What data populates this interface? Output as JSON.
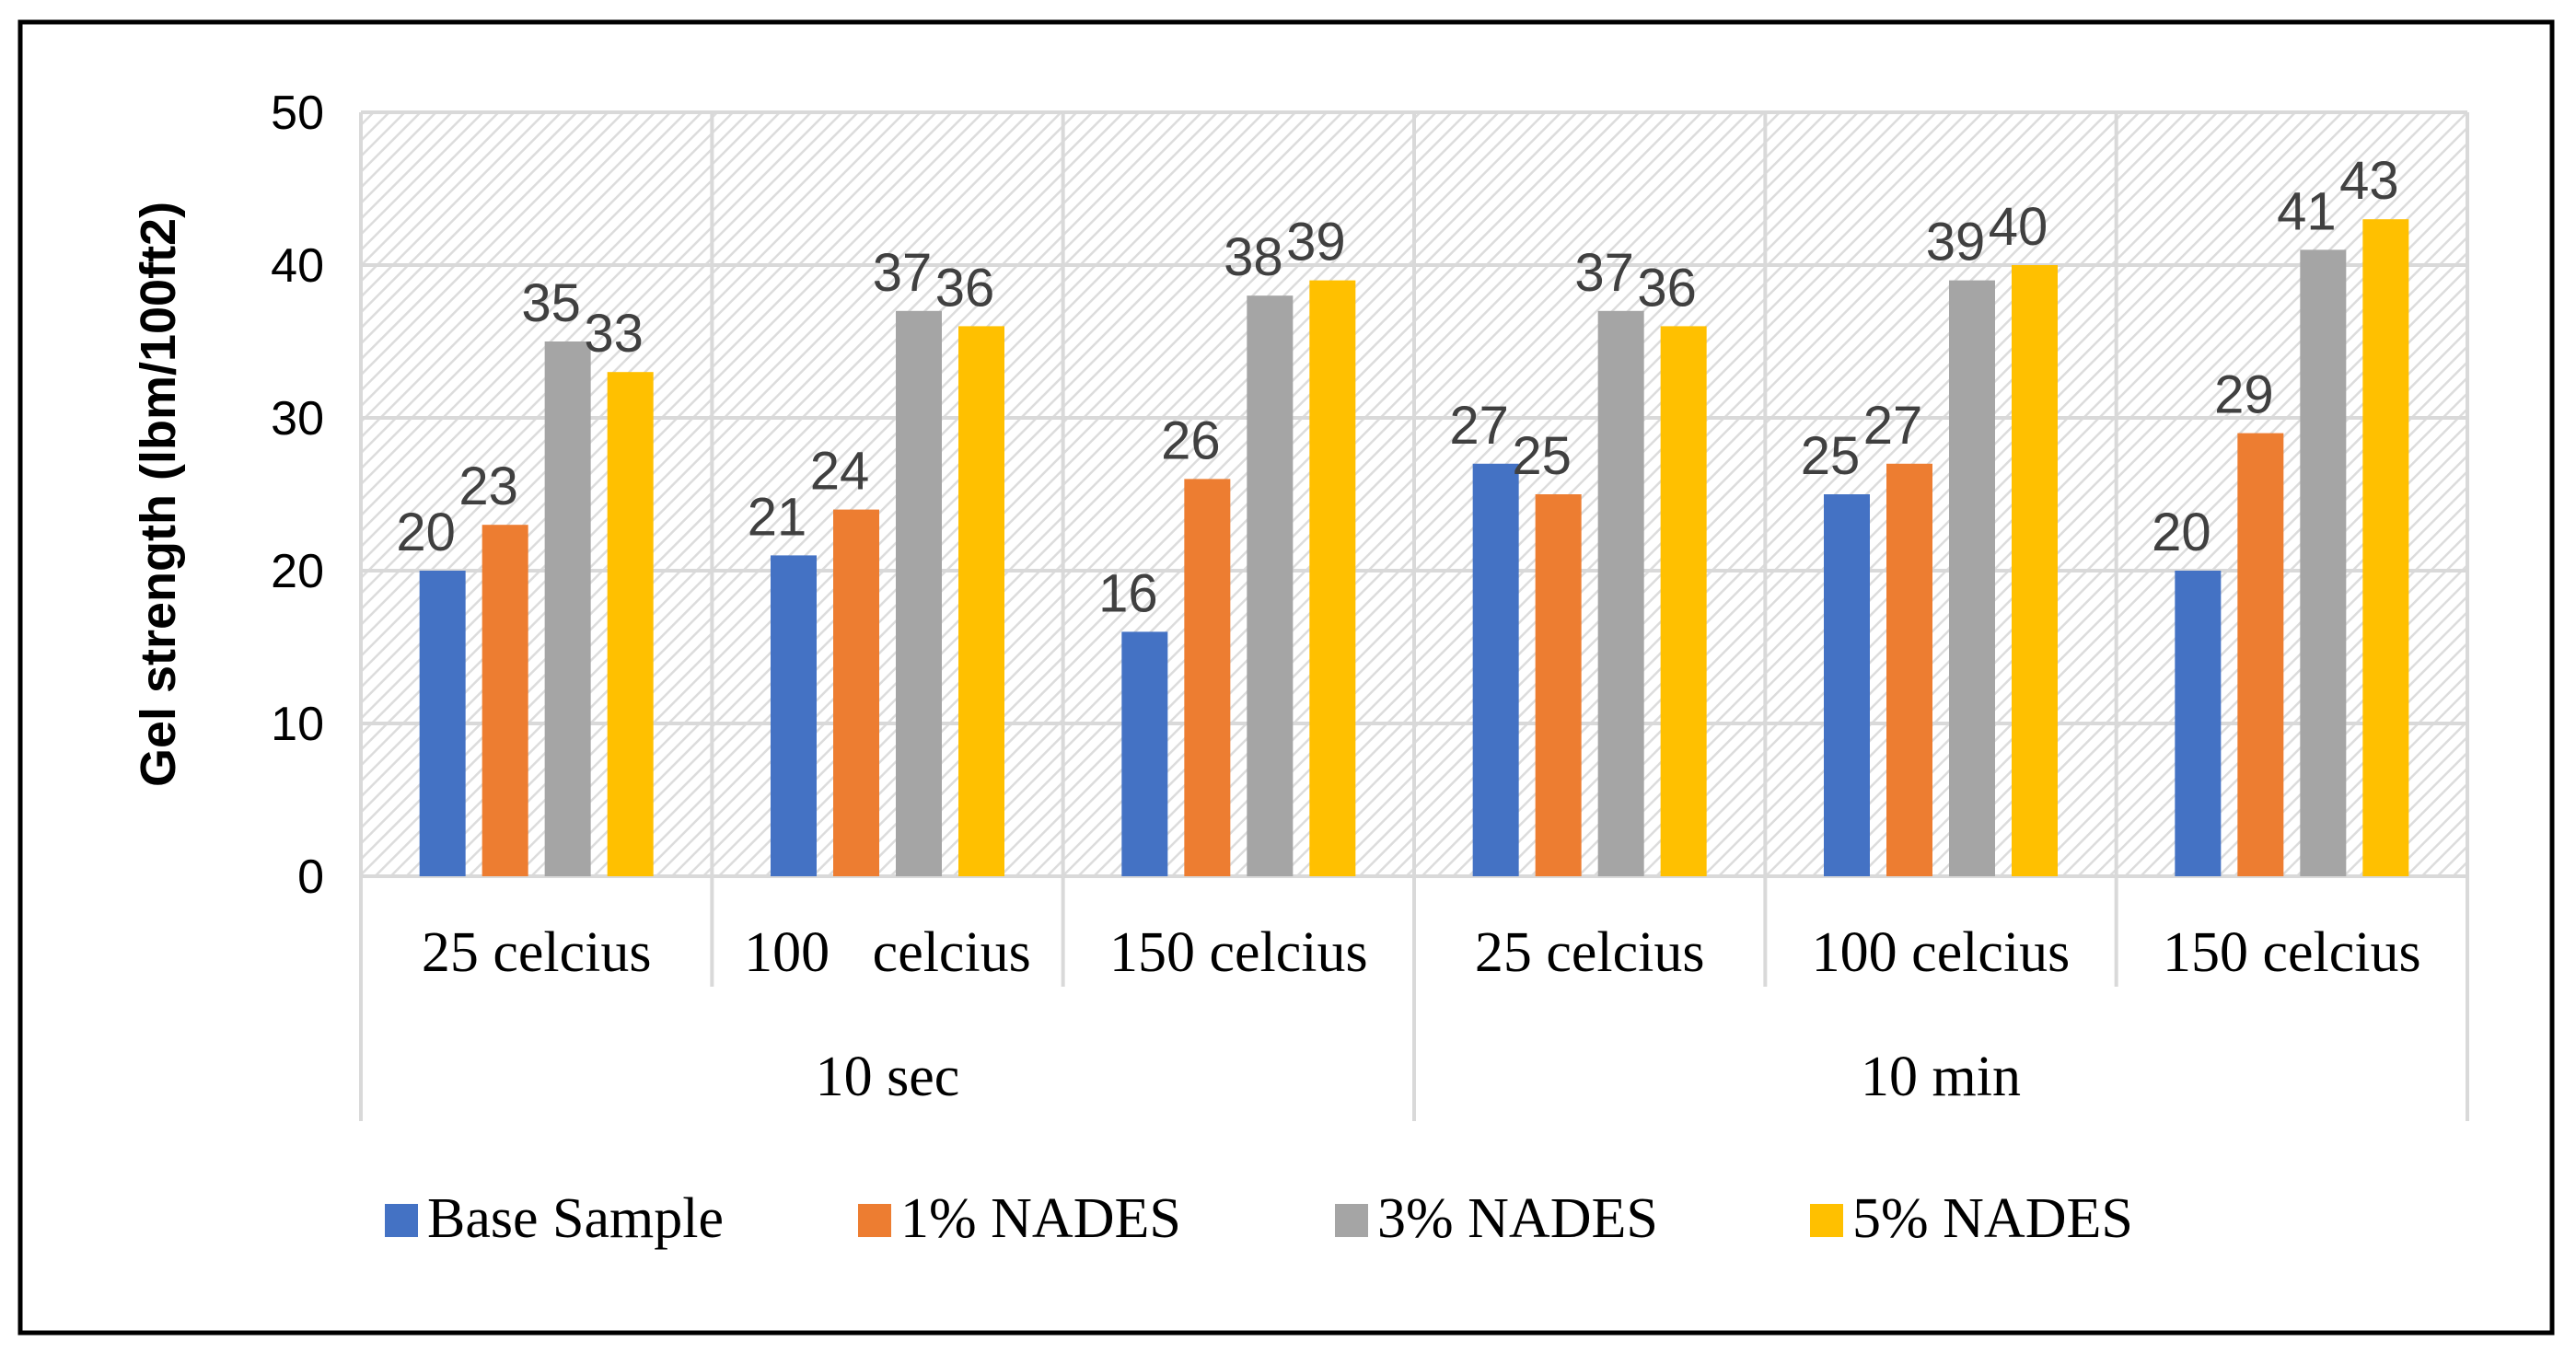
{
  "chart_data": {
    "type": "bar",
    "title": "",
    "ylabel": "Gel strength (lbm/100ft2)",
    "xlabel": "",
    "ylim": [
      0,
      50
    ],
    "yticks": [
      0,
      10,
      20,
      30,
      40,
      50
    ],
    "grid": true,
    "legend_position": "bottom",
    "groups": [
      {
        "label": "10 sec",
        "categories": [
          "25 celcius",
          "100   celcius",
          "150 celcius"
        ]
      },
      {
        "label": "10 min",
        "categories": [
          "25 celcius",
          "100 celcius",
          "150 celcius"
        ]
      }
    ],
    "series": [
      {
        "name": "Base Sample",
        "color": "#4472C4",
        "values": [
          20,
          21,
          16,
          27,
          25,
          20
        ]
      },
      {
        "name": "1% NADES",
        "color": "#ED7D31",
        "values": [
          23,
          24,
          26,
          25,
          27,
          29
        ]
      },
      {
        "name": "3% NADES",
        "color": "#A5A5A5",
        "values": [
          35,
          37,
          38,
          37,
          39,
          41
        ]
      },
      {
        "name": "5% NADES",
        "color": "#FFC000",
        "values": [
          33,
          36,
          39,
          36,
          40,
          43
        ]
      }
    ]
  }
}
